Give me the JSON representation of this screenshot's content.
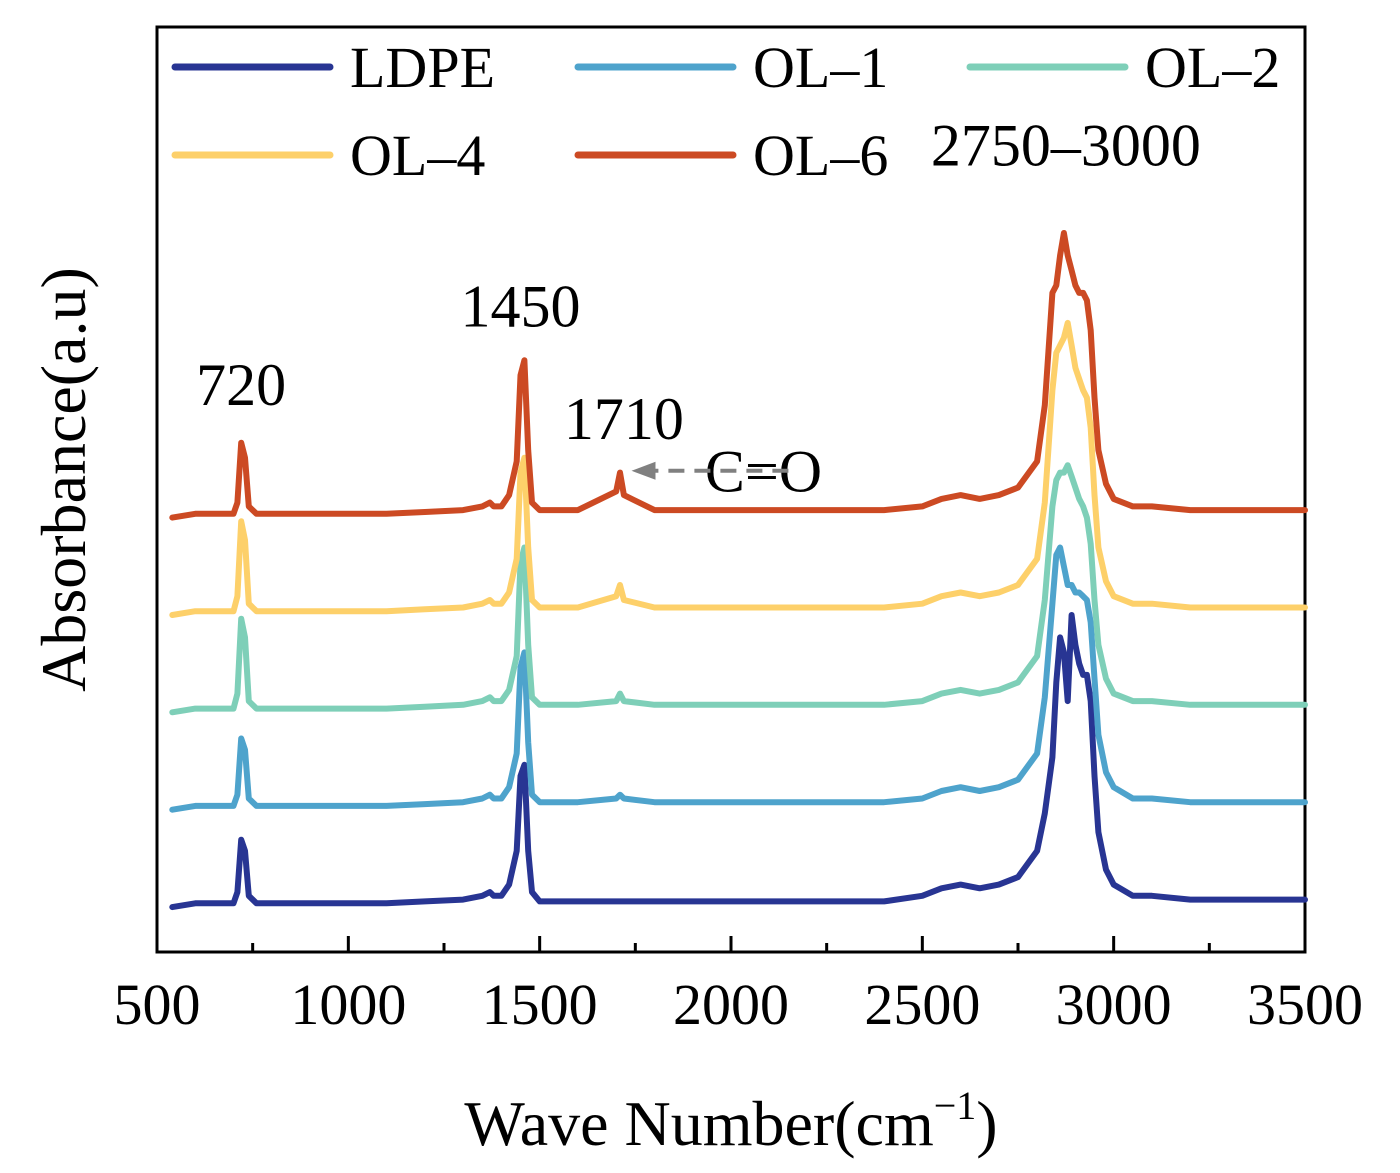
{
  "chart_data": {
    "type": "line",
    "xlabel": "Wave Number(cm",
    "xlabel_sup": "−1",
    "xlabel_close": ")",
    "ylabel": "Absorbance(a.u)",
    "xlim": [
      500,
      3500
    ],
    "x_ticks": [
      500,
      1000,
      1500,
      2000,
      2500,
      3000,
      3500
    ],
    "y_ticks_visible": false,
    "grid": false,
    "legend_position": "top",
    "series": [
      {
        "name": "LDPE",
        "color": "#283593",
        "offset": 0,
        "x": [
          540,
          600,
          650,
          700,
          710,
          720,
          730,
          740,
          760,
          800,
          900,
          1000,
          1100,
          1200,
          1300,
          1350,
          1370,
          1380,
          1400,
          1420,
          1440,
          1450,
          1460,
          1470,
          1480,
          1500,
          1600,
          1700,
          1710,
          1720,
          1800,
          1900,
          2000,
          2100,
          2200,
          2300,
          2400,
          2500,
          2550,
          2600,
          2650,
          2700,
          2750,
          2800,
          2820,
          2840,
          2850,
          2860,
          2870,
          2880,
          2890,
          2900,
          2910,
          2920,
          2930,
          2940,
          2950,
          2960,
          2980,
          3000,
          3050,
          3100,
          3200,
          3300,
          3400,
          3500
        ],
        "y": [
          0.0,
          0.01,
          0.01,
          0.01,
          0.04,
          0.18,
          0.15,
          0.03,
          0.01,
          0.01,
          0.01,
          0.01,
          0.01,
          0.015,
          0.02,
          0.03,
          0.04,
          0.03,
          0.03,
          0.06,
          0.15,
          0.35,
          0.38,
          0.15,
          0.04,
          0.015,
          0.015,
          0.015,
          0.015,
          0.015,
          0.015,
          0.015,
          0.015,
          0.015,
          0.015,
          0.015,
          0.015,
          0.03,
          0.05,
          0.06,
          0.05,
          0.06,
          0.08,
          0.15,
          0.25,
          0.4,
          0.6,
          0.72,
          0.68,
          0.55,
          0.78,
          0.7,
          0.65,
          0.62,
          0.62,
          0.55,
          0.35,
          0.2,
          0.1,
          0.06,
          0.03,
          0.03,
          0.02,
          0.02,
          0.02,
          0.02
        ]
      },
      {
        "name": "OL–1",
        "color": "#4ea3cc",
        "offset": 0.26,
        "x": [
          540,
          600,
          650,
          700,
          710,
          720,
          730,
          740,
          760,
          800,
          900,
          1000,
          1100,
          1200,
          1300,
          1350,
          1370,
          1380,
          1400,
          1420,
          1440,
          1450,
          1460,
          1470,
          1480,
          1500,
          1600,
          1700,
          1710,
          1720,
          1800,
          1900,
          2000,
          2100,
          2200,
          2300,
          2400,
          2500,
          2550,
          2600,
          2650,
          2700,
          2750,
          2800,
          2820,
          2840,
          2850,
          2860,
          2870,
          2880,
          2890,
          2900,
          2910,
          2920,
          2930,
          2940,
          2950,
          2960,
          2980,
          3000,
          3050,
          3100,
          3200,
          3300,
          3400,
          3500
        ],
        "y": [
          0.0,
          0.01,
          0.01,
          0.01,
          0.04,
          0.19,
          0.16,
          0.03,
          0.01,
          0.01,
          0.01,
          0.01,
          0.01,
          0.015,
          0.02,
          0.03,
          0.04,
          0.03,
          0.03,
          0.06,
          0.15,
          0.38,
          0.42,
          0.18,
          0.04,
          0.02,
          0.02,
          0.03,
          0.04,
          0.03,
          0.02,
          0.02,
          0.02,
          0.02,
          0.02,
          0.02,
          0.02,
          0.03,
          0.05,
          0.06,
          0.05,
          0.06,
          0.08,
          0.15,
          0.3,
          0.55,
          0.68,
          0.7,
          0.65,
          0.6,
          0.6,
          0.58,
          0.58,
          0.57,
          0.56,
          0.5,
          0.35,
          0.2,
          0.1,
          0.06,
          0.03,
          0.03,
          0.02,
          0.02,
          0.02,
          0.02
        ]
      },
      {
        "name": "OL–2",
        "color": "#7ecfb8",
        "offset": 0.52,
        "x": [
          540,
          600,
          650,
          700,
          710,
          720,
          730,
          740,
          760,
          800,
          900,
          1000,
          1100,
          1200,
          1300,
          1350,
          1370,
          1380,
          1400,
          1420,
          1440,
          1450,
          1460,
          1470,
          1480,
          1500,
          1600,
          1700,
          1710,
          1720,
          1800,
          1900,
          2000,
          2100,
          2200,
          2300,
          2400,
          2500,
          2550,
          2600,
          2650,
          2700,
          2750,
          2800,
          2820,
          2840,
          2850,
          2860,
          2870,
          2880,
          2890,
          2900,
          2910,
          2920,
          2930,
          2940,
          2950,
          2960,
          2980,
          3000,
          3050,
          3100,
          3200,
          3300,
          3400,
          3500
        ],
        "y": [
          0.0,
          0.01,
          0.01,
          0.01,
          0.05,
          0.25,
          0.2,
          0.03,
          0.01,
          0.01,
          0.01,
          0.01,
          0.01,
          0.015,
          0.02,
          0.03,
          0.04,
          0.03,
          0.03,
          0.06,
          0.15,
          0.4,
          0.44,
          0.18,
          0.04,
          0.02,
          0.02,
          0.03,
          0.05,
          0.03,
          0.02,
          0.02,
          0.02,
          0.02,
          0.02,
          0.02,
          0.02,
          0.03,
          0.05,
          0.06,
          0.05,
          0.06,
          0.08,
          0.15,
          0.3,
          0.55,
          0.62,
          0.64,
          0.64,
          0.66,
          0.63,
          0.6,
          0.57,
          0.55,
          0.52,
          0.45,
          0.3,
          0.18,
          0.09,
          0.05,
          0.03,
          0.03,
          0.02,
          0.02,
          0.02,
          0.02
        ]
      },
      {
        "name": "OL–4",
        "color": "#fdd06a",
        "offset": 0.78,
        "x": [
          540,
          600,
          650,
          700,
          710,
          720,
          730,
          740,
          760,
          800,
          900,
          1000,
          1100,
          1200,
          1300,
          1350,
          1370,
          1380,
          1400,
          1420,
          1440,
          1450,
          1460,
          1470,
          1480,
          1500,
          1600,
          1700,
          1710,
          1720,
          1800,
          1900,
          2000,
          2100,
          2200,
          2300,
          2400,
          2500,
          2550,
          2600,
          2650,
          2700,
          2750,
          2800,
          2820,
          2840,
          2850,
          2860,
          2870,
          2880,
          2890,
          2900,
          2910,
          2920,
          2930,
          2940,
          2950,
          2960,
          2980,
          3000,
          3050,
          3100,
          3200,
          3300,
          3400,
          3500
        ],
        "y": [
          0.0,
          0.01,
          0.01,
          0.01,
          0.05,
          0.25,
          0.2,
          0.03,
          0.01,
          0.01,
          0.01,
          0.01,
          0.01,
          0.015,
          0.02,
          0.03,
          0.04,
          0.03,
          0.03,
          0.06,
          0.15,
          0.38,
          0.42,
          0.18,
          0.04,
          0.02,
          0.02,
          0.05,
          0.08,
          0.04,
          0.02,
          0.02,
          0.02,
          0.02,
          0.02,
          0.02,
          0.02,
          0.03,
          0.05,
          0.06,
          0.05,
          0.06,
          0.08,
          0.15,
          0.3,
          0.6,
          0.7,
          0.72,
          0.74,
          0.78,
          0.72,
          0.66,
          0.63,
          0.6,
          0.58,
          0.5,
          0.32,
          0.18,
          0.09,
          0.05,
          0.03,
          0.03,
          0.02,
          0.02,
          0.02,
          0.02
        ]
      },
      {
        "name": "OL–6",
        "color": "#cc4a23",
        "offset": 1.04,
        "x": [
          540,
          600,
          650,
          700,
          710,
          720,
          730,
          740,
          760,
          800,
          900,
          1000,
          1100,
          1200,
          1300,
          1350,
          1370,
          1380,
          1400,
          1420,
          1440,
          1450,
          1460,
          1470,
          1480,
          1500,
          1600,
          1700,
          1710,
          1720,
          1800,
          1900,
          2000,
          2100,
          2200,
          2300,
          2400,
          2500,
          2550,
          2600,
          2650,
          2700,
          2750,
          2800,
          2820,
          2840,
          2850,
          2860,
          2870,
          2880,
          2890,
          2900,
          2910,
          2920,
          2930,
          2940,
          2950,
          2960,
          2980,
          3000,
          3050,
          3100,
          3200,
          3300,
          3400,
          3500
        ],
        "y": [
          0.0,
          0.01,
          0.01,
          0.01,
          0.04,
          0.2,
          0.16,
          0.03,
          0.01,
          0.01,
          0.01,
          0.01,
          0.01,
          0.015,
          0.02,
          0.03,
          0.04,
          0.03,
          0.03,
          0.06,
          0.15,
          0.38,
          0.42,
          0.18,
          0.04,
          0.02,
          0.02,
          0.07,
          0.12,
          0.06,
          0.02,
          0.02,
          0.02,
          0.02,
          0.02,
          0.02,
          0.02,
          0.03,
          0.05,
          0.06,
          0.05,
          0.06,
          0.08,
          0.15,
          0.3,
          0.6,
          0.62,
          0.7,
          0.76,
          0.7,
          0.66,
          0.62,
          0.6,
          0.6,
          0.58,
          0.5,
          0.32,
          0.18,
          0.09,
          0.05,
          0.03,
          0.03,
          0.02,
          0.02,
          0.02,
          0.02
        ]
      }
    ],
    "annotations": [
      {
        "text": "720",
        "x": 720,
        "y": 1.34
      },
      {
        "text": "1450",
        "x": 1450,
        "y": 1.55
      },
      {
        "text": "1710",
        "x": 1720,
        "y": 1.25
      },
      {
        "text": "2750–3000",
        "x": 2875,
        "y": 1.98
      },
      {
        "text": "C=O",
        "x": 2085,
        "y": 1.11
      }
    ],
    "arrow": {
      "from_x": 2150,
      "to_x": 1740,
      "y": 1.165,
      "color": "#808080",
      "style": "dashed"
    },
    "ylim": [
      -0.12,
      2.35
    ]
  }
}
